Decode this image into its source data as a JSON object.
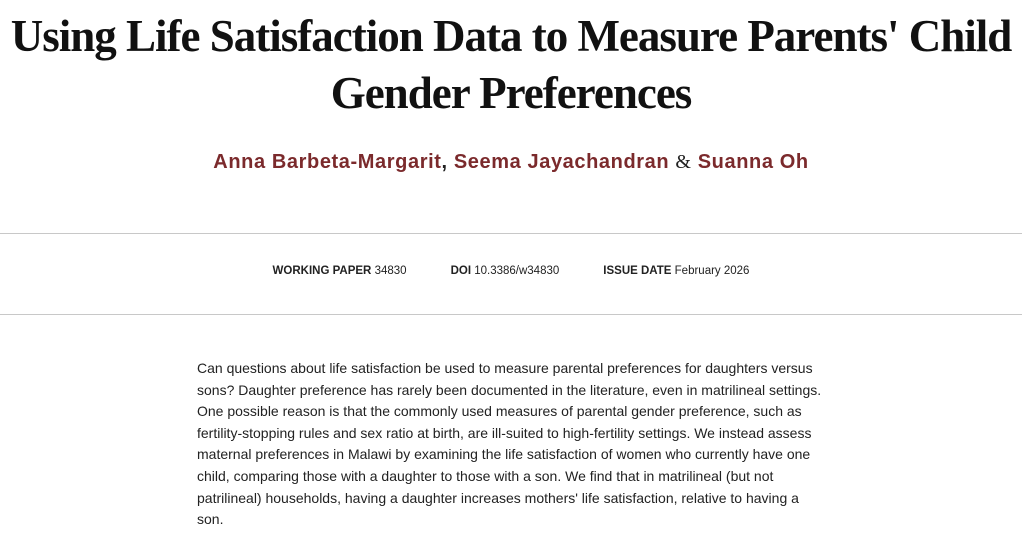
{
  "title": "Using Life Satisfaction Data to Measure Parents' Child Gender Preferences",
  "authors": [
    {
      "name": "Anna Barbeta-Margarit"
    },
    {
      "name": "Seema Jayachandran"
    },
    {
      "name": "Suanna Oh"
    }
  ],
  "author_separators": [
    ",",
    "&"
  ],
  "meta": {
    "working_paper_label": "WORKING PAPER",
    "working_paper_value": "34830",
    "doi_label": "DOI",
    "doi_value": "10.3386/w34830",
    "issue_date_label": "ISSUE DATE",
    "issue_date_value": "February 2026"
  },
  "abstract": "Can questions about life satisfaction be used to measure parental preferences for daughters versus sons? Daughter preference has rarely been documented in the literature, even in matrilineal settings. One possible reason is that the commonly used measures of parental gender preference, such as fertility-stopping rules and sex ratio at birth, are ill-suited to high-fertility settings. We instead assess maternal preferences in Malawi by examining the life satisfaction of women who currently have one child, comparing those with a daughter to those with a son. We find that in matrilineal (but not patrilineal) households, having a daughter increases mothers' life satisfaction, relative to having a son."
}
